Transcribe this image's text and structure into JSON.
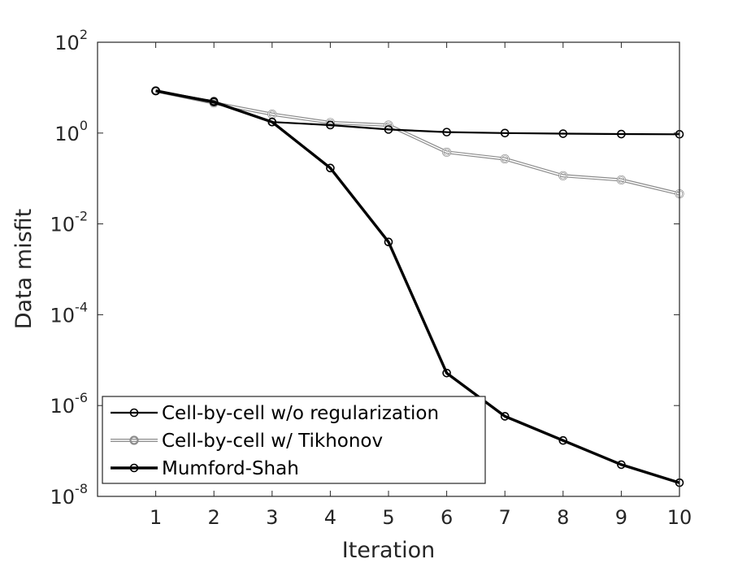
{
  "chart_data": {
    "type": "line",
    "xlabel": "Iteration",
    "ylabel": "Data misfit",
    "yscale": "log",
    "xlim": [
      0,
      10
    ],
    "ylim": [
      1e-08,
      100
    ],
    "x_ticks": [
      1,
      2,
      3,
      4,
      5,
      6,
      7,
      8,
      9,
      10
    ],
    "y_ticks": [
      {
        "base": "10",
        "exp": "2",
        "value": 100
      },
      {
        "base": "10",
        "exp": "0",
        "value": 1
      },
      {
        "base": "10",
        "exp": "-2",
        "value": 0.01
      },
      {
        "base": "10",
        "exp": "-4",
        "value": 0.0001
      },
      {
        "base": "10",
        "exp": "-6",
        "value": 1e-06
      },
      {
        "base": "10",
        "exp": "-8",
        "value": 1e-08
      }
    ],
    "grid": false,
    "box": true,
    "legend_position": "bottom-left",
    "x": [
      1,
      2,
      3,
      4,
      5,
      6,
      7,
      8,
      9,
      10
    ],
    "series": [
      {
        "name": "Cell-by-cell w/o regularization",
        "color": "#000000",
        "style": "thin-solid-circle",
        "values": [
          8.5,
          5.0,
          1.75,
          1.5,
          1.2,
          1.05,
          1.0,
          0.97,
          0.95,
          0.94
        ]
      },
      {
        "name": "Cell-by-cell w/ Tikhonov",
        "color": "#9a9a9a",
        "style": "light-double-circle",
        "values": [
          8.5,
          4.6,
          2.6,
          1.7,
          1.5,
          0.38,
          0.27,
          0.115,
          0.093,
          0.046
        ]
      },
      {
        "name": "Mumford-Shah",
        "color": "#000000",
        "style": "thick-solid-circle",
        "values": [
          8.5,
          4.8,
          1.75,
          0.17,
          0.004,
          5.2e-06,
          5.8e-07,
          1.7e-07,
          5e-08,
          2e-08
        ]
      }
    ]
  }
}
